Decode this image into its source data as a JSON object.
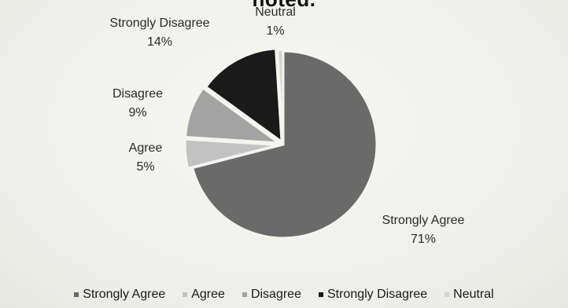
{
  "chart_data": {
    "type": "pie",
    "title": "noted.",
    "categories": [
      "Strongly Agree",
      "Agree",
      "Disagree",
      "Strongly Disagree",
      "Neutral"
    ],
    "values": [
      71,
      5,
      9,
      14,
      1
    ],
    "labels": [
      "71%",
      "5%",
      "9%",
      "14%",
      "1%"
    ],
    "colors": [
      "#6a6a6a",
      "#c2c2c2",
      "#a3a3a3",
      "#1a1a1a",
      "#d4d4d4"
    ],
    "legend_position": "bottom"
  }
}
